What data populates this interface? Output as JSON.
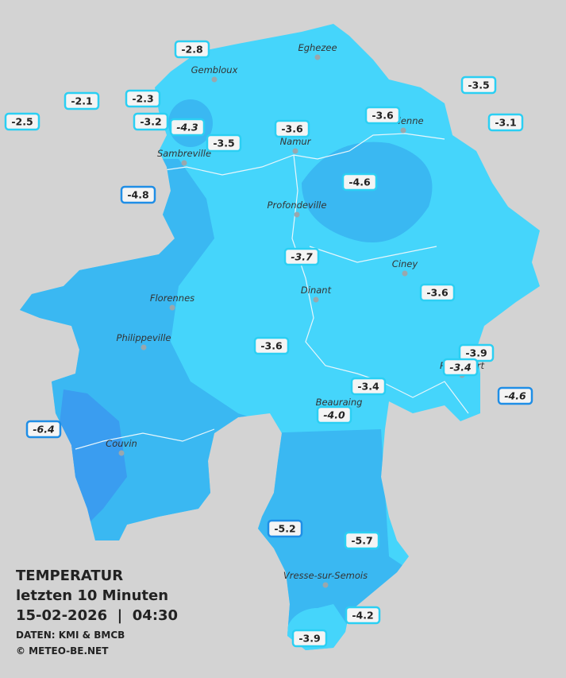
{
  "cities": [
    "Eghezee",
    "Gembloux",
    "Andenne",
    "Namur",
    "Sambreville",
    "Profondeville",
    "Ciney",
    "Dinant",
    "Florennes",
    "Philippeville",
    "Rochefort",
    "Beauraing",
    "Couvin",
    "Vresse-sur-Semois"
  ],
  "readings": [
    "-2.8",
    "-2.1",
    "-2.3",
    "-2.5",
    "-3.2",
    "-4.3",
    "-3.5",
    "-3.6",
    "-3.6",
    "-3.5",
    "-3.1",
    "-4.8",
    "-4.6",
    "-3.7",
    "-3.6",
    "-3.6",
    "-3.9",
    "-3.4",
    "-3.4",
    "-4.0",
    "-4.6",
    "-6.4",
    "-5.2",
    "-5.7",
    "-4.2",
    "-3.9"
  ],
  "legend": {
    "title": "TEMPERATUR",
    "subtitle": "letzten 10 Minuten",
    "datetime": "15-02-2026  |  04:30",
    "source": "DATEN: KMI & BMCB",
    "copyright": "© METEO-BE.NET"
  }
}
